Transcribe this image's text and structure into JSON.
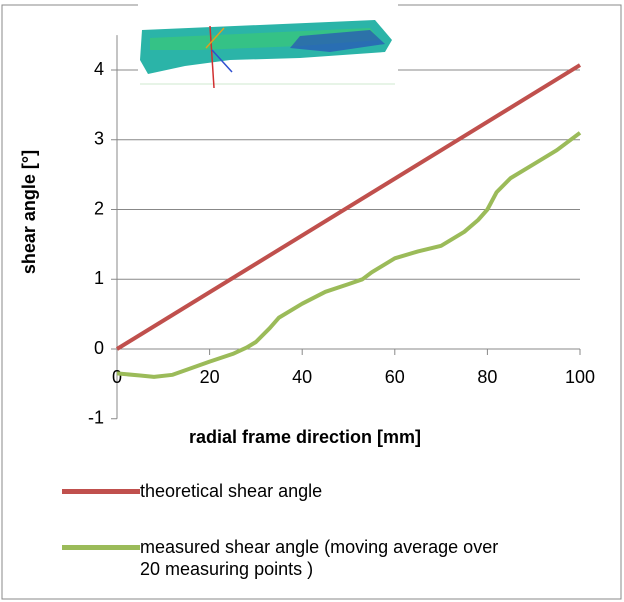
{
  "chart_data": {
    "type": "line",
    "xlabel": "radial frame direction [mm]",
    "ylabel": "shear angle [°]",
    "xlim": [
      0,
      100
    ],
    "ylim": [
      -1,
      4.5
    ],
    "xticks": [
      0,
      20,
      40,
      60,
      80,
      100
    ],
    "yticks": [
      -1,
      0,
      1,
      2,
      3,
      4
    ],
    "grid": true,
    "legend": "bottom",
    "series": [
      {
        "name": "theoretical shear angle",
        "color": "#c0504d",
        "x": [
          0,
          100
        ],
        "values": [
          0,
          4.07
        ]
      },
      {
        "name": "measured shear angle (moving average over 20 measuring points )",
        "color": "#9bbb59",
        "x": [
          0,
          5,
          8,
          12,
          15,
          20,
          25,
          28,
          30,
          33,
          35,
          40,
          45,
          50,
          53,
          55,
          60,
          65,
          70,
          75,
          78,
          80,
          82,
          85,
          90,
          95,
          100
        ],
        "values": [
          -0.35,
          -0.38,
          -0.4,
          -0.37,
          -0.3,
          -0.18,
          -0.07,
          0.02,
          0.1,
          0.3,
          0.45,
          0.65,
          0.82,
          0.93,
          1.0,
          1.1,
          1.3,
          1.4,
          1.48,
          1.68,
          1.85,
          2.0,
          2.25,
          2.45,
          2.65,
          2.85,
          3.1
        ]
      }
    ]
  }
}
